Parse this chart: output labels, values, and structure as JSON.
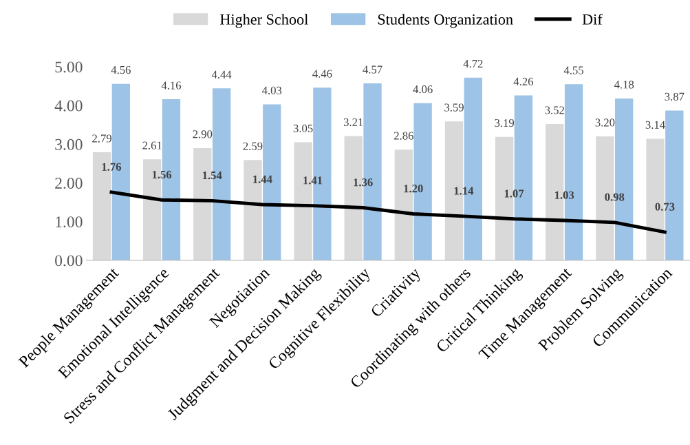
{
  "chart_data": {
    "type": "bar",
    "categories": [
      "People Management",
      "Emotional Intelligence",
      "Stress and Conflict Management",
      "Negotiation",
      "Judgment and Decision Making",
      "Cognitive Flexibility",
      "Criativity",
      "Coordinating with others",
      "Critical Thinking",
      "Time Management",
      "Problem Solving",
      "Communication"
    ],
    "series": [
      {
        "name": "Higher School",
        "color": "#d9d9d9",
        "values": [
          2.79,
          2.61,
          2.9,
          2.59,
          3.05,
          3.21,
          2.86,
          3.59,
          3.19,
          3.52,
          3.2,
          3.14
        ],
        "value_labels": [
          "2.79",
          "2.61",
          "2.90",
          "2.59",
          "3.05",
          "3.21",
          "2.86",
          "3.59",
          "3.19",
          "3.52",
          "3.20",
          "3.14"
        ]
      },
      {
        "name": "Students Organization",
        "color": "#9dc3e6",
        "values": [
          4.56,
          4.16,
          4.44,
          4.03,
          4.46,
          4.57,
          4.06,
          4.72,
          4.26,
          4.55,
          4.18,
          3.87
        ],
        "value_labels": [
          "4.56",
          "4.16",
          "4.44",
          "4.03",
          "4.46",
          "4.57",
          "4.06",
          "4.72",
          "4.26",
          "4.55",
          "4.18",
          "3.87"
        ]
      },
      {
        "name": "Dif",
        "type": "line",
        "color": "#000000",
        "values": [
          1.76,
          1.56,
          1.54,
          1.44,
          1.41,
          1.36,
          1.2,
          1.14,
          1.07,
          1.03,
          0.98,
          0.73
        ],
        "value_labels": [
          "1.76",
          "1.56",
          "1.54",
          "1.44",
          "1.41",
          "1.36",
          "1.20",
          "1.14",
          "1.07",
          "1.03",
          "0.98",
          "0.73"
        ]
      }
    ],
    "ylim": [
      0,
      5
    ],
    "yticks": [
      {
        "value": 0,
        "label": "0.00"
      },
      {
        "value": 1,
        "label": "1.00"
      },
      {
        "value": 2,
        "label": "2.00"
      },
      {
        "value": 3,
        "label": "3.00"
      },
      {
        "value": 4,
        "label": "4.00"
      },
      {
        "value": 5,
        "label": "5.00"
      }
    ],
    "grid": false,
    "legend": "top",
    "marker": "none",
    "line_style": "solid"
  }
}
